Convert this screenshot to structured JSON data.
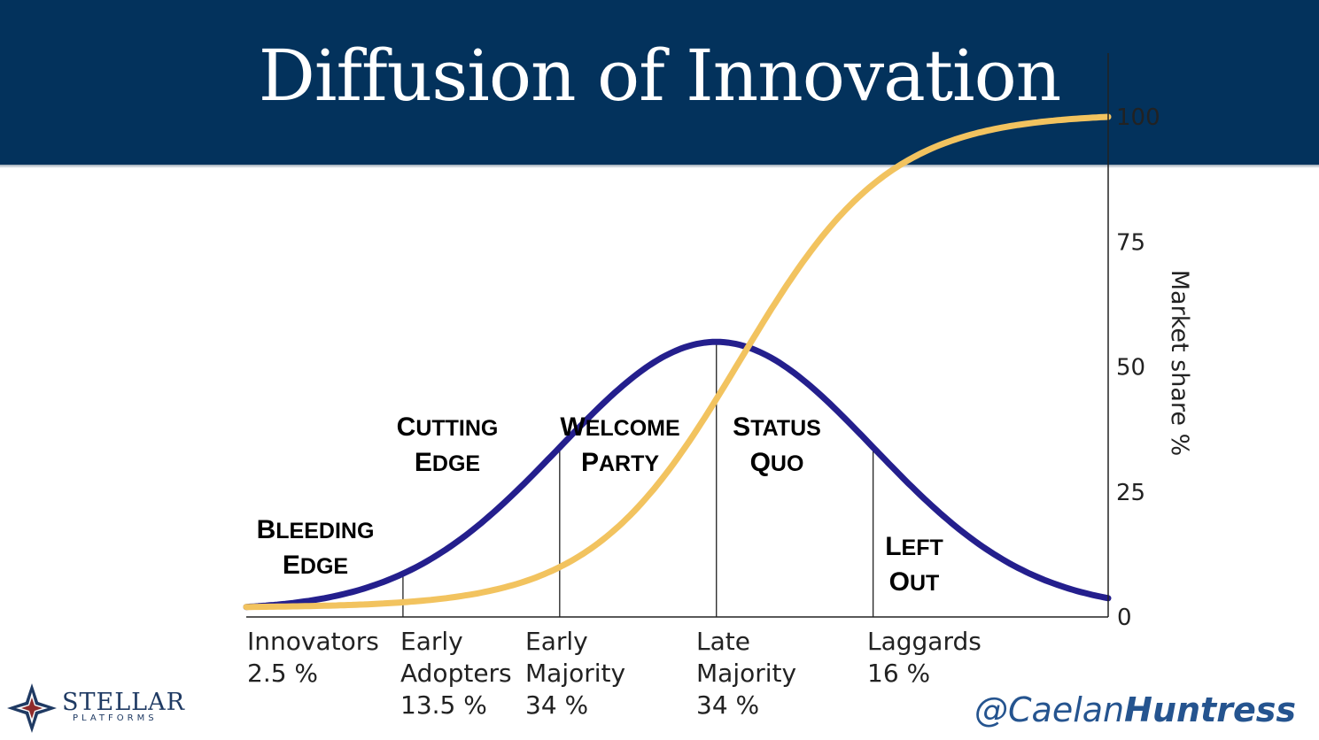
{
  "title": "Diffusion of Innovation",
  "chart_data": {
    "type": "line",
    "ylabel": "Market share %",
    "yticks": [
      0,
      25,
      50,
      75,
      100
    ],
    "ylim": [
      0,
      100
    ],
    "series": [
      {
        "kind": "bell-curve",
        "color": "#241f8d",
        "peak_market_share_pct": 55,
        "tail_market_share_pct": 2
      },
      {
        "kind": "s-curve",
        "color": "#f2c35f",
        "start_market_share_pct": 2,
        "end_market_share_pct": 100
      }
    ],
    "segment_boundaries_sd": [
      -2,
      -1,
      0,
      1
    ],
    "categories": [
      {
        "name": "Innovators",
        "lines": [
          "Innovators",
          "2.5 %"
        ],
        "share_pct": 2.5,
        "label_lines": [
          "Bleeding",
          "Edge"
        ]
      },
      {
        "name": "Early Adopters",
        "lines": [
          "Early",
          "Adopters",
          "13.5 %"
        ],
        "share_pct": 13.5,
        "label_lines": [
          "Cutting",
          "Edge"
        ]
      },
      {
        "name": "Early Majority",
        "lines": [
          "Early",
          "Majority",
          "34 %"
        ],
        "share_pct": 34,
        "label_lines": [
          "Welcome",
          "Party"
        ]
      },
      {
        "name": "Late Majority",
        "lines": [
          "Late",
          "Majority",
          "34 %"
        ],
        "share_pct": 34,
        "label_lines": [
          "Status",
          "Quo"
        ]
      },
      {
        "name": "Laggards",
        "lines": [
          "Laggards",
          "16 %"
        ],
        "share_pct": 16,
        "label_lines": [
          "Left",
          "Out"
        ]
      }
    ]
  },
  "logo": {
    "name": "STELLAR",
    "sub": "PLATFORMS"
  },
  "handle": {
    "prefix": "@Caelan",
    "bold": "Huntress"
  }
}
